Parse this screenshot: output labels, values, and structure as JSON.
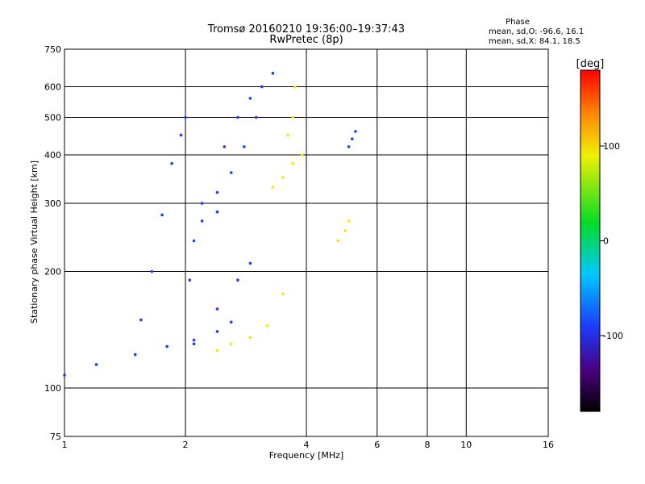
{
  "chart_data": {
    "type": "scatter",
    "title": "Tromsø 20160210 19:36:00–19:37:43",
    "subtitle": "RwPretec (8p)",
    "xlabel": "Frequency [MHz]",
    "ylabel": "Stationary phase Virtual Height [km]",
    "x_scale": "log",
    "y_scale": "log",
    "xlim": [
      1,
      16
    ],
    "ylim": [
      75,
      750
    ],
    "x_ticks": [
      1,
      2,
      4,
      6,
      8,
      10,
      16
    ],
    "x_ticklabels": [
      "1",
      "2",
      "4",
      "6",
      "8",
      "10",
      "16"
    ],
    "x_grid": [
      2,
      4,
      6,
      8,
      10
    ],
    "y_ticks": [
      75,
      100,
      200,
      300,
      400,
      500,
      600,
      750
    ],
    "y_ticklabels": [
      "75",
      "100",
      "200",
      "300",
      "400",
      "500",
      "600",
      "750"
    ],
    "y_grid": [
      100,
      200,
      300,
      400,
      500,
      600
    ],
    "grid": true,
    "stats": {
      "heading": "Phase",
      "line_o": "mean, sd,O: -96.6, 16.1",
      "line_x": "mean, sd,X:  84.1, 18.5"
    },
    "colorbar": {
      "label": "[deg]",
      "range": [
        -180,
        180
      ],
      "ticks": [
        100,
        0,
        -100
      ],
      "ticklabels": [
        "100",
        "0",
        "-100"
      ]
    },
    "series": [
      {
        "name": "O",
        "phase": -96.6,
        "color": "#1a3cff",
        "traces": [
          {
            "x": [
              1.0,
              1.2,
              1.5,
              1.8,
              2.1,
              2.4,
              2.6
            ],
            "y": [
              108,
              115,
              122,
              128,
              133,
              140,
              148
            ]
          },
          {
            "x": [
              1.55,
              1.65,
              1.75,
              1.85,
              1.95,
              2.0
            ],
            "y": [
              150,
              200,
              280,
              380,
              450,
              500
            ]
          },
          {
            "x": [
              2.05,
              2.1,
              2.2,
              2.4
            ],
            "y": [
              190,
              240,
              270,
              285
            ]
          },
          {
            "x": [
              2.2,
              2.4,
              2.6,
              2.8,
              3.0
            ],
            "y": [
              300,
              320,
              360,
              420,
              500
            ]
          },
          {
            "x": [
              2.5,
              2.7,
              2.9,
              3.1,
              3.3
            ],
            "y": [
              420,
              500,
              560,
              600,
              650
            ]
          },
          {
            "x": [
              2.1,
              2.4,
              2.7,
              2.9
            ],
            "y": [
              130,
              160,
              190,
              210
            ]
          },
          {
            "x": [
              5.1,
              5.2,
              5.3
            ],
            "y": [
              420,
              440,
              460
            ]
          }
        ]
      },
      {
        "name": "X",
        "phase": 84.1,
        "color": "#ffe600",
        "traces": [
          {
            "x": [
              2.4,
              2.6,
              2.9,
              3.2,
              3.5
            ],
            "y": [
              125,
              130,
              135,
              145,
              175
            ]
          },
          {
            "x": [
              3.3,
              3.5,
              3.7,
              3.9
            ],
            "y": [
              330,
              350,
              380,
              400
            ]
          },
          {
            "x": [
              3.6,
              3.7,
              3.75
            ],
            "y": [
              450,
              500,
              600
            ]
          },
          {
            "x": [
              4.8,
              5.0,
              5.1
            ],
            "y": [
              240,
              255,
              270
            ]
          }
        ]
      }
    ]
  }
}
